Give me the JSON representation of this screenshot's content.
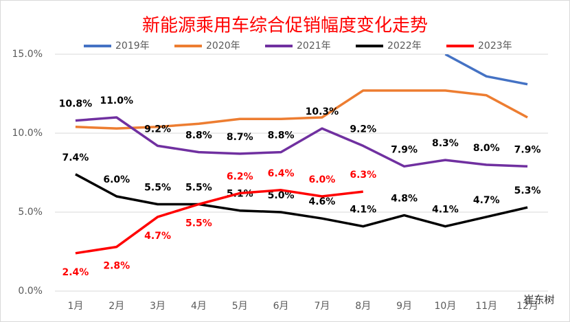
{
  "chart_data": {
    "type": "line",
    "title": "新能源乘用车综合促销幅度变化走势",
    "categories": [
      "1月",
      "2月",
      "3月",
      "4月",
      "5月",
      "6月",
      "7月",
      "8月",
      "9月",
      "10月",
      "11月",
      "12月"
    ],
    "ylim": [
      0,
      15
    ],
    "yticks": [
      {
        "value": 0,
        "label": "0.0%"
      },
      {
        "value": 5,
        "label": "5.0%"
      },
      {
        "value": 10,
        "label": "10.0%"
      },
      {
        "value": 15,
        "label": "15.0%"
      }
    ],
    "grid": true,
    "legend": "top",
    "series": [
      {
        "name": "2019年",
        "color": "#4472c4",
        "values": [
          null,
          null,
          null,
          null,
          null,
          null,
          null,
          null,
          null,
          15.0,
          13.6,
          13.1
        ]
      },
      {
        "name": "2020年",
        "color": "#ed7d31",
        "values": [
          10.4,
          10.3,
          10.4,
          10.6,
          10.9,
          10.9,
          11.0,
          12.7,
          12.7,
          12.7,
          12.4,
          11.0
        ]
      },
      {
        "name": "2021年",
        "color": "#7030a0",
        "values": [
          10.8,
          11.0,
          9.2,
          8.8,
          8.7,
          8.8,
          10.3,
          9.2,
          7.9,
          8.3,
          8.0,
          7.9
        ],
        "value_labels": [
          "10.8%",
          "11.0%",
          "9.2%",
          "8.8%",
          "8.7%",
          "8.8%",
          "10.3%",
          "9.2%",
          "7.9%",
          "8.3%",
          "8.0%",
          "7.9%"
        ]
      },
      {
        "name": "2022年",
        "color": "#000000",
        "values": [
          7.4,
          6.0,
          5.5,
          5.5,
          5.1,
          5.0,
          4.6,
          4.1,
          4.8,
          4.1,
          4.7,
          5.3
        ],
        "value_labels": [
          "7.4%",
          "6.0%",
          "5.5%",
          "5.5%",
          "5.1%",
          "5.0%",
          "4.6%",
          "4.1%",
          "4.8%",
          "4.1%",
          "4.7%",
          "5.3%"
        ]
      },
      {
        "name": "2023年",
        "color": "#ff0000",
        "values": [
          2.4,
          2.8,
          4.7,
          5.5,
          6.2,
          6.4,
          6.0,
          6.3,
          null,
          null,
          null,
          null
        ],
        "value_labels": [
          "2.4%",
          "2.8%",
          "4.7%",
          "5.5%",
          "6.2%",
          "6.4%",
          "6.0%",
          "6.3%",
          null,
          null,
          null,
          null
        ]
      }
    ]
  },
  "watermark": "崔东树"
}
